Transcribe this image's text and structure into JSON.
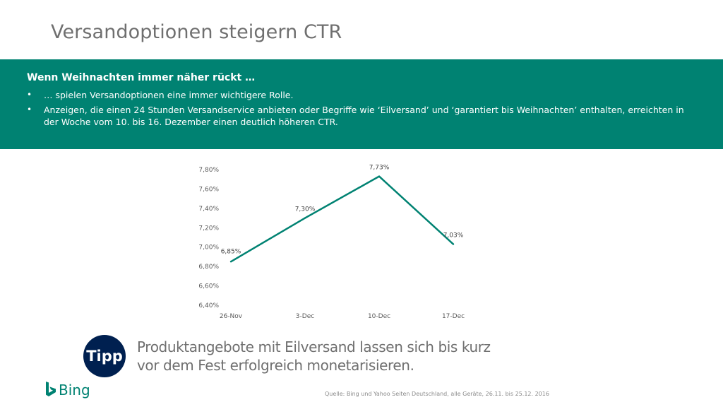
{
  "slide": {
    "title": "Versandoptionen steigern CTR"
  },
  "banner": {
    "heading": "Wenn Weihnachten immer näher rückt …",
    "bullets": [
      "… spielen Versandoptionen eine immer wichtigere Rolle.",
      "Anzeigen, die einen 24 Stunden Versandservice anbieten oder Begriffe wie ‘Eilversand’ und ‘garantiert bis Weihnachten’ enthalten, erreichten in der Woche vom 10. bis 16. Dezember einen deutlich höheren CTR."
    ],
    "bullet_symbol": "•",
    "color": "#008272"
  },
  "chart_data": {
    "type": "line",
    "categories": [
      "26-Nov",
      "3-Dec",
      "10-Dec",
      "17-Dec"
    ],
    "series": [
      {
        "values": [
          6.85,
          7.3,
          7.73,
          7.03
        ],
        "labels": [
          "6,85%",
          "7,30%",
          "7,73%",
          "7,03%"
        ],
        "color": "#008272"
      }
    ],
    "ylim": [
      6.4,
      7.8
    ],
    "yticks": [
      6.4,
      6.6,
      6.8,
      7.0,
      7.2,
      7.4,
      7.6,
      7.8
    ],
    "ytick_labels": [
      "6,40%",
      "6,60%",
      "6,80%",
      "7,00%",
      "7,20%",
      "7,40%",
      "7,60%",
      "7,80%"
    ],
    "title": "",
    "xlabel": "",
    "ylabel": "",
    "grid": false,
    "legend": "none"
  },
  "tip": {
    "badge": "Tipp",
    "text": "Produktangebote mit Eilversand lassen sich bis kurz vor dem Fest erfolgreich monetarisieren.",
    "badge_color": "#002050"
  },
  "footer": {
    "logo_text": "Bing",
    "logo_icon": "bing-b-icon",
    "source": "Quelle: Bing und Yahoo Seiten Deutschland, alle Geräte, 26.11. bis 25.12. 2016"
  }
}
